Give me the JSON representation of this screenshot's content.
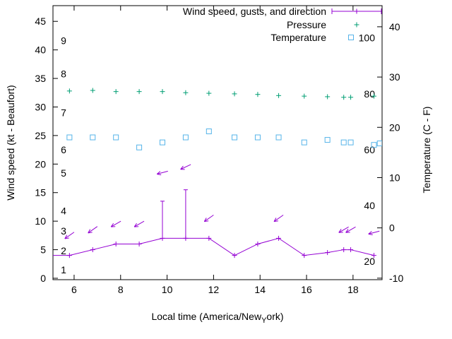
{
  "legend": {
    "items": [
      {
        "label": "Wind speed, gusts, and direction",
        "color": "#9400d3",
        "marker": "line-plus-errorbar"
      },
      {
        "label": "Pressure",
        "color": "#009e73",
        "marker": "plus"
      },
      {
        "label": "Temperature",
        "color": "#56b4e9",
        "marker": "open-square"
      }
    ]
  },
  "axes": {
    "x": {
      "label_full": "Local time (America/New_York)",
      "label_pre": "Local time (America/New",
      "label_sub": "Y",
      "label_post": "ork)",
      "ticks": [
        6,
        8,
        10,
        12,
        14,
        16,
        18
      ],
      "min": 5.09,
      "max": 19.25
    },
    "y_left": {
      "label": "Wind speed (kt - Beaufort)",
      "ticks": [
        0,
        5,
        10,
        15,
        20,
        25,
        30,
        35,
        40,
        45
      ],
      "min": -0.25,
      "max": 47.75
    },
    "y_right": {
      "label": "Temperature (C - F)",
      "ticks": [
        -10,
        0,
        10,
        20,
        30,
        40
      ],
      "min": -10.3,
      "max": 44.2
    }
  },
  "chart_data": {
    "type": "line",
    "title": "",
    "x_label": "Local time (America/New_York)",
    "x_ticks": [
      6,
      8,
      10,
      12,
      14,
      16,
      18
    ],
    "x_range": [
      5.09,
      19.25
    ],
    "y_left_label": "Wind speed (kt - Beaufort)",
    "y_left_ticks": [
      0,
      5,
      10,
      15,
      20,
      25,
      30,
      35,
      40,
      45
    ],
    "y_left_range": [
      -0.25,
      47.75
    ],
    "y_right_label": "Temperature (C - F)",
    "y_right_ticks": [
      -10,
      0,
      10,
      20,
      30,
      40
    ],
    "y_right_range": [
      -10.3,
      44.2
    ],
    "grid": false,
    "legend_position": "top-right",
    "beaufort_labels": {
      "values": [
        1,
        2,
        3,
        4,
        5,
        6,
        7,
        8,
        9
      ],
      "kt_positions": [
        1.5,
        4.8,
        8.3,
        11.8,
        18.4,
        22.5,
        29,
        35.8,
        41.6
      ]
    },
    "fahrenheit_labels": [
      20,
      40,
      60,
      80,
      100
    ],
    "series": [
      {
        "name": "Wind speed, gusts, and direction",
        "axis": "left",
        "color": "#9400d3",
        "style": "linespoints+errorbars+vectors",
        "line_start_x": 5.09,
        "line_start_y": 4,
        "x": [
          5.8,
          6.8,
          7.8,
          8.8,
          9.8,
          10.8,
          11.8,
          12.9,
          13.9,
          14.8,
          15.9,
          16.9,
          17.6,
          17.9,
          18.9
        ],
        "speed_kt": [
          4,
          5,
          6,
          6,
          7,
          7,
          7,
          4,
          6,
          7,
          4,
          4.5,
          5,
          5,
          4
        ],
        "gust_kt": [
          4,
          5,
          6,
          6,
          13.5,
          15.5,
          7,
          4,
          6,
          7,
          4,
          4.5,
          5,
          5,
          4
        ],
        "arrows": {
          "x": [
            5.8,
            6.8,
            7.8,
            8.8,
            9.8,
            10.8,
            11.8,
            14.8,
            17.6,
            17.9,
            18.9
          ],
          "y_kt": [
            7.5,
            8.5,
            9.5,
            9.5,
            18.5,
            19.5,
            10.5,
            10.5,
            8.5,
            8.5,
            8
          ],
          "angle_deg": [
            215,
            215,
            210,
            210,
            195,
            205,
            215,
            215,
            210,
            210,
            195
          ]
        }
      },
      {
        "name": "Pressure",
        "axis": "left",
        "color": "#009e73",
        "style": "points",
        "marker": "plus",
        "x": [
          5.8,
          6.8,
          7.8,
          8.8,
          9.8,
          10.8,
          11.8,
          12.9,
          13.9,
          14.8,
          15.9,
          16.9,
          17.6,
          17.9,
          18.9
        ],
        "value_left_axis_units": [
          32.8,
          32.9,
          32.7,
          32.7,
          32.7,
          32.5,
          32.4,
          32.3,
          32.2,
          32.0,
          31.9,
          31.8,
          31.7,
          31.7,
          31.9
        ]
      },
      {
        "name": "Temperature",
        "axis": "right",
        "color": "#56b4e9",
        "style": "points",
        "marker": "open-square",
        "x": [
          5.8,
          6.8,
          7.8,
          8.8,
          9.8,
          10.8,
          11.8,
          12.9,
          13.9,
          14.8,
          15.9,
          16.9,
          17.6,
          17.9,
          18.9,
          19.15
        ],
        "temp_c": [
          18,
          18,
          18,
          16,
          17,
          18,
          19.2,
          18,
          18,
          18,
          17,
          17.5,
          17,
          17,
          16.5,
          16.8
        ]
      }
    ]
  }
}
